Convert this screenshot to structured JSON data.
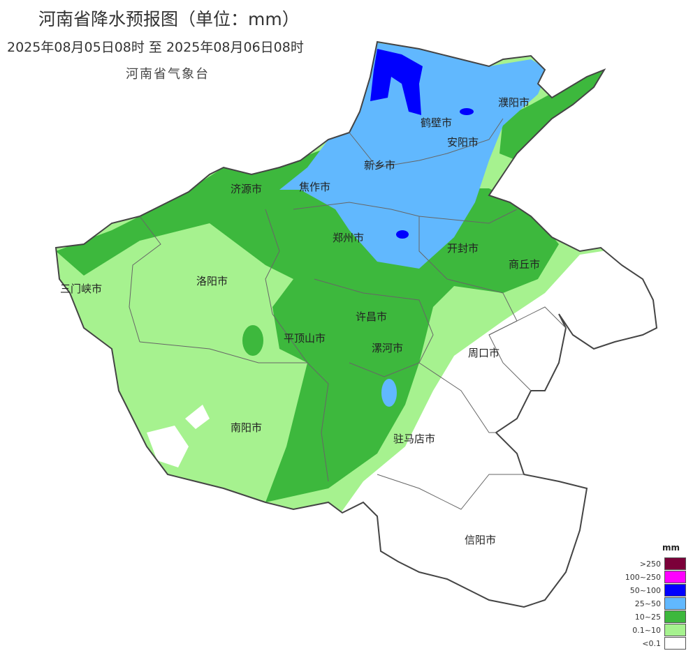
{
  "header": {
    "title": "河南省降水预报图（单位：mm）",
    "period": "2025年08月05日08时  至  2025年08月06日08时",
    "organization": "河南省气象台"
  },
  "map": {
    "region": "河南省",
    "cities": [
      {
        "name": "濮阳市"
      },
      {
        "name": "鹤壁市"
      },
      {
        "name": "安阳市"
      },
      {
        "name": "新乡市"
      },
      {
        "name": "济源市"
      },
      {
        "name": "焦作市"
      },
      {
        "name": "郑州市"
      },
      {
        "name": "开封市"
      },
      {
        "name": "商丘市"
      },
      {
        "name": "三门峡市"
      },
      {
        "name": "洛阳市"
      },
      {
        "name": "许昌市"
      },
      {
        "name": "平顶山市"
      },
      {
        "name": "漯河市"
      },
      {
        "name": "周口市"
      },
      {
        "name": "南阳市"
      },
      {
        "name": "驻马店市"
      },
      {
        "name": "信阳市"
      }
    ]
  },
  "legend": {
    "unit": "mm",
    "items": [
      {
        "label": ">250",
        "color": "#7b0039"
      },
      {
        "label": "100~250",
        "color": "#ff00ff"
      },
      {
        "label": "50~100",
        "color": "#0000fe"
      },
      {
        "label": "25~50",
        "color": "#61b8fe"
      },
      {
        "label": "10~25",
        "color": "#3db83d"
      },
      {
        "label": "0.1~10",
        "color": "#a6f28f"
      },
      {
        "label": "<0.1",
        "color": "#ffffff"
      }
    ]
  }
}
